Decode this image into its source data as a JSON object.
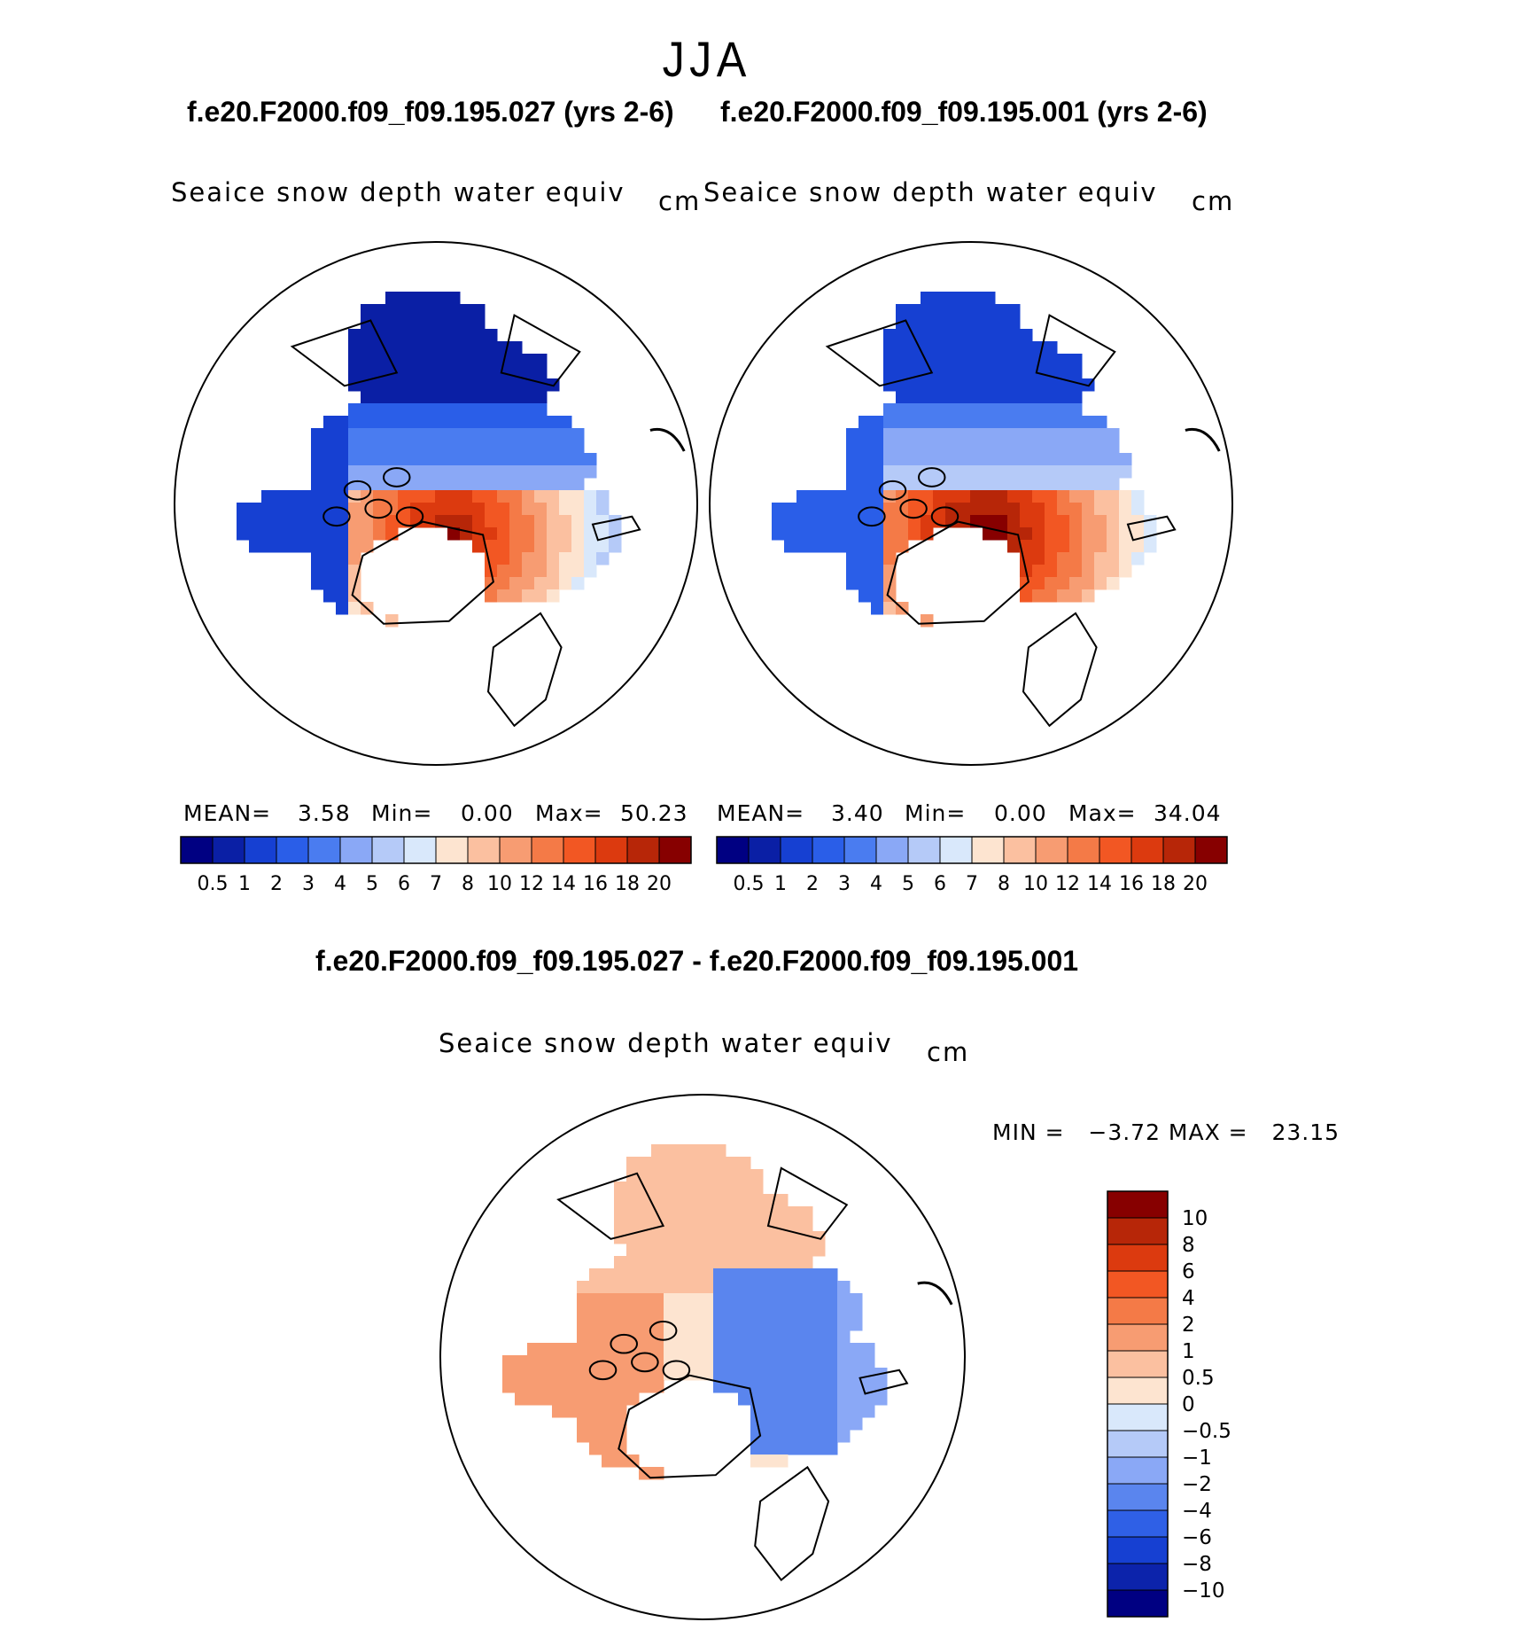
{
  "figure": {
    "season": "JJA",
    "case_left": "f.e20.F2000.f09_f09.195.027 (yrs 2-6)",
    "case_right": "f.e20.F2000.f09_f09.195.001 (yrs 2-6)",
    "diff_title": "f.e20.F2000.f09_f09.195.027 - f.e20.F2000.f09_f09.195.001"
  },
  "panels": {
    "left": {
      "variable": "Seaice snow depth water equiv",
      "units": "cm",
      "mean_label": "MEAN=",
      "mean": "3.58",
      "min_label": "Min=",
      "min": "0.00",
      "max_label": "Max=",
      "max": "50.23"
    },
    "right": {
      "variable": "Seaice snow depth water equiv",
      "units": "cm",
      "mean_label": "MEAN=",
      "mean": "3.40",
      "min_label": "Min=",
      "min": "0.00",
      "max_label": "Max=",
      "max": "34.04"
    },
    "diff": {
      "variable": "Seaice snow depth water equiv",
      "units": "cm",
      "minmax": "MIN =   −3.72 MAX =   23.15"
    }
  },
  "colors": {
    "abs_scale": [
      "#000082",
      "#0a1fa5",
      "#1640d2",
      "#2a5ee8",
      "#4a7cf0",
      "#8aa8f6",
      "#b5caf8",
      "#d9e8fb",
      "#fde4d0",
      "#fbc0a0",
      "#f79c72",
      "#f47a47",
      "#f25723",
      "#dc3a0f",
      "#b72608",
      "#870000"
    ],
    "diff_scale": [
      "#000082",
      "#0c23ab",
      "#1640d2",
      "#2f60e6",
      "#5a85ee",
      "#8aa8f6",
      "#b5caf8",
      "#d9e8fb",
      "#fde4d0",
      "#fbc0a0",
      "#f79c72",
      "#f47a47",
      "#f25723",
      "#dc3a0f",
      "#b72608",
      "#870000"
    ],
    "land": "#ffffff",
    "coast": "#000000"
  },
  "chart_data": [
    {
      "type": "heatmap",
      "title": "Seaice snow depth water equiv",
      "units": "cm",
      "projection": "north polar stereographic",
      "stats": {
        "mean": 3.58,
        "min": 0.0,
        "max": 50.23
      },
      "colorbar_levels": [
        "0.5",
        "1",
        "2",
        "3",
        "4",
        "5",
        "6",
        "7",
        "8",
        "10",
        "12",
        "14",
        "16",
        "18",
        "20"
      ]
    },
    {
      "type": "heatmap",
      "title": "Seaice snow depth water equiv",
      "units": "cm",
      "projection": "north polar stereographic",
      "stats": {
        "mean": 3.4,
        "min": 0.0,
        "max": 34.04
      },
      "colorbar_levels": [
        "0.5",
        "1",
        "2",
        "3",
        "4",
        "5",
        "6",
        "7",
        "8",
        "10",
        "12",
        "14",
        "16",
        "18",
        "20"
      ]
    },
    {
      "type": "heatmap",
      "title": "Seaice snow depth water equiv",
      "units": "cm",
      "projection": "north polar stereographic",
      "stats": {
        "min": -3.72,
        "max": 23.15
      },
      "colorbar_levels": [
        "10",
        "8",
        "6",
        "4",
        "2",
        "1",
        "0.5",
        "0",
        "−0.5",
        "−1",
        "−2",
        "−4",
        "−6",
        "−8",
        "−10"
      ]
    }
  ]
}
